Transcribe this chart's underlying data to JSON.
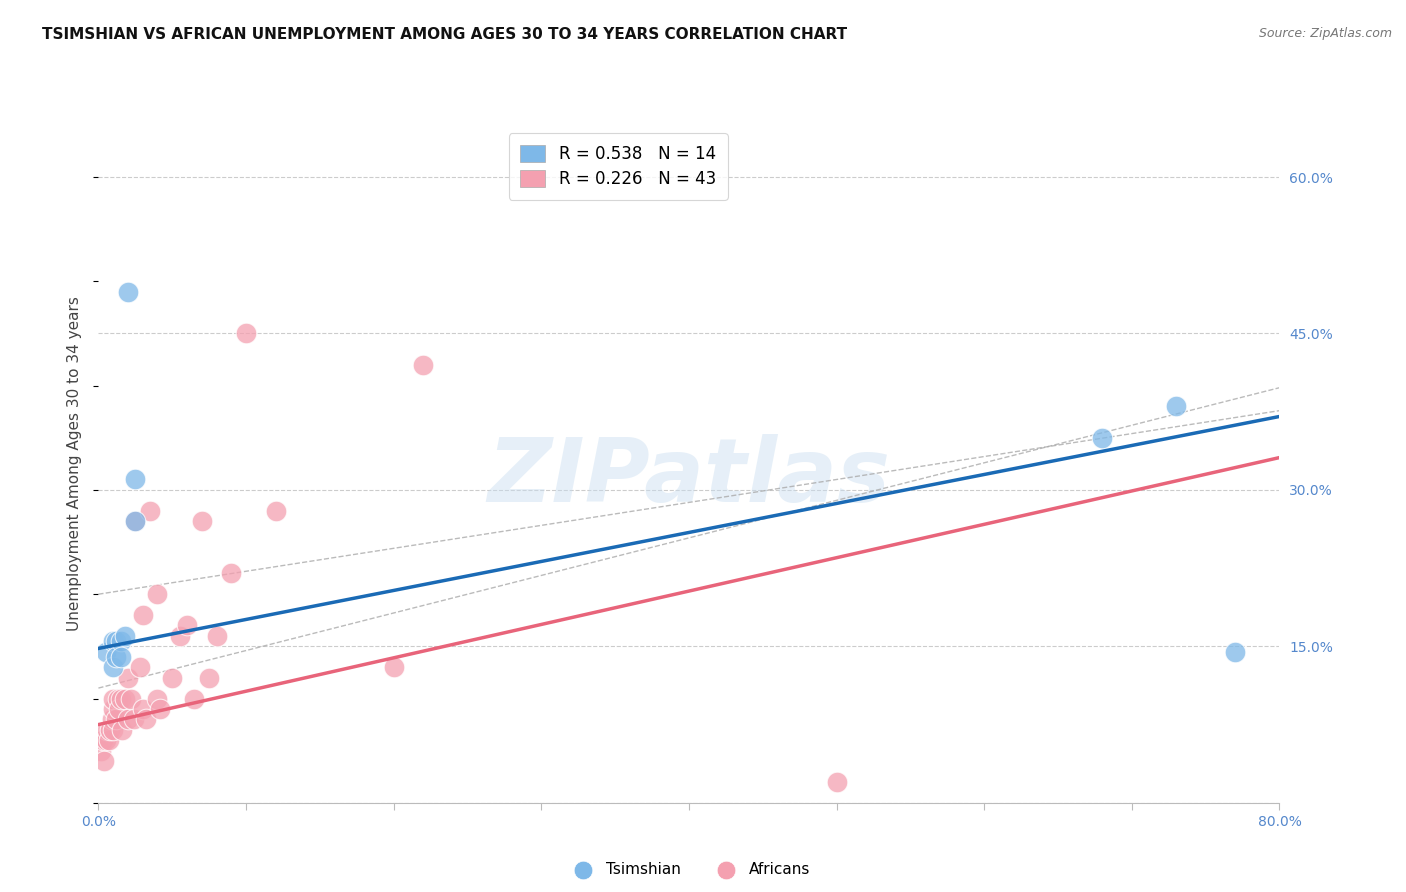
{
  "title": "TSIMSHIAN VS AFRICAN UNEMPLOYMENT AMONG AGES 30 TO 34 YEARS CORRELATION CHART",
  "source": "Source: ZipAtlas.com",
  "ylabel": "Unemployment Among Ages 30 to 34 years",
  "xlim": [
    0.0,
    0.8
  ],
  "ylim": [
    0.0,
    0.65
  ],
  "xticks": [
    0.0,
    0.1,
    0.2,
    0.3,
    0.4,
    0.5,
    0.6,
    0.7,
    0.8
  ],
  "xticklabels": [
    "0.0%",
    "",
    "",
    "",
    "",
    "",
    "",
    "",
    "80.0%"
  ],
  "yticks": [
    0.0,
    0.15,
    0.3,
    0.45,
    0.6
  ],
  "right_yticklabels": [
    "",
    "15.0%",
    "30.0%",
    "45.0%",
    "60.0%"
  ],
  "tsimshian_x": [
    0.005,
    0.01,
    0.01,
    0.012,
    0.012,
    0.015,
    0.015,
    0.018,
    0.02,
    0.025,
    0.025,
    0.68,
    0.73,
    0.77
  ],
  "tsimshian_y": [
    0.145,
    0.13,
    0.155,
    0.155,
    0.14,
    0.155,
    0.14,
    0.16,
    0.49,
    0.31,
    0.27,
    0.35,
    0.38,
    0.145
  ],
  "africans_x": [
    0.002,
    0.003,
    0.004,
    0.005,
    0.006,
    0.007,
    0.008,
    0.009,
    0.01,
    0.01,
    0.01,
    0.012,
    0.013,
    0.014,
    0.015,
    0.016,
    0.018,
    0.02,
    0.02,
    0.022,
    0.024,
    0.025,
    0.028,
    0.03,
    0.03,
    0.032,
    0.035,
    0.04,
    0.04,
    0.042,
    0.05,
    0.055,
    0.06,
    0.065,
    0.07,
    0.075,
    0.08,
    0.09,
    0.1,
    0.12,
    0.2,
    0.22,
    0.5
  ],
  "africans_y": [
    0.05,
    0.06,
    0.04,
    0.06,
    0.07,
    0.06,
    0.07,
    0.08,
    0.07,
    0.09,
    0.1,
    0.08,
    0.1,
    0.09,
    0.1,
    0.07,
    0.1,
    0.08,
    0.12,
    0.1,
    0.08,
    0.27,
    0.13,
    0.09,
    0.18,
    0.08,
    0.28,
    0.1,
    0.2,
    0.09,
    0.12,
    0.16,
    0.17,
    0.1,
    0.27,
    0.12,
    0.16,
    0.22,
    0.45,
    0.28,
    0.13,
    0.42,
    0.02
  ],
  "tsimshian_color": "#7eb8e8",
  "africans_color": "#f4a0b0",
  "tsimshian_line_color": "#1a6ab5",
  "africans_line_color": "#e8647a",
  "tsimshian_line_intercept": 0.148,
  "tsimshian_line_slope": 0.278,
  "africans_line_intercept": 0.075,
  "africans_line_slope": 0.32,
  "conf_band_intercept_upper": 0.2,
  "conf_band_slope_upper": 0.22,
  "conf_band_intercept_lower": 0.11,
  "conf_band_slope_lower": 0.36,
  "R_tsimshian": 0.538,
  "N_tsimshian": 14,
  "R_africans": 0.226,
  "N_africans": 43,
  "watermark": "ZIPatlas",
  "legend_tsimshian": "Tsimshian",
  "legend_africans": "Africans",
  "background_color": "#ffffff",
  "title_fontsize": 11,
  "axis_label_fontsize": 11,
  "tick_label_fontsize": 10,
  "legend_fontsize": 12,
  "source_fontsize": 9
}
